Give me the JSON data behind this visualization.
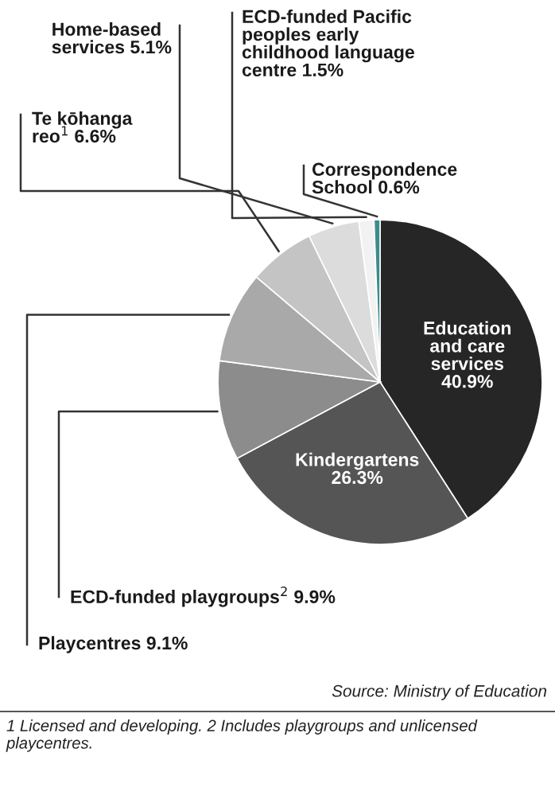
{
  "chart_data": {
    "type": "pie",
    "categories": [
      "Education\nand care\nservices",
      "Kindergartens",
      "ECD-funded playgroups$^{2}$",
      "Playcentres",
      "Te kōhanga\nreo$^{1}$",
      "Home-based\nservices",
      "ECD-funded Pacific\npeoples early\nchildhood language\ncentre",
      "Correspondence\nSchool"
    ],
    "values": [
      40.9,
      26.3,
      9.9,
      9.1,
      6.6,
      5.1,
      1.5,
      0.6
    ],
    "colors": [
      "#262626",
      "#555555",
      "#8c8c8c",
      "#a9a9a9",
      "#c4c4c4",
      "#dcdcdc",
      "#f2f2f2",
      "#3d8c8c"
    ],
    "value_labels": [
      "40.9%",
      "26.3%",
      "9.9%",
      "9.1%",
      "6.6%",
      "5.1%",
      "1.5%",
      "0.6%"
    ],
    "annotations": [
      "Source: Ministry of Education",
      "1 Licensed and developing. 2 Includes playgroups and unlicensed playcentres."
    ]
  }
}
